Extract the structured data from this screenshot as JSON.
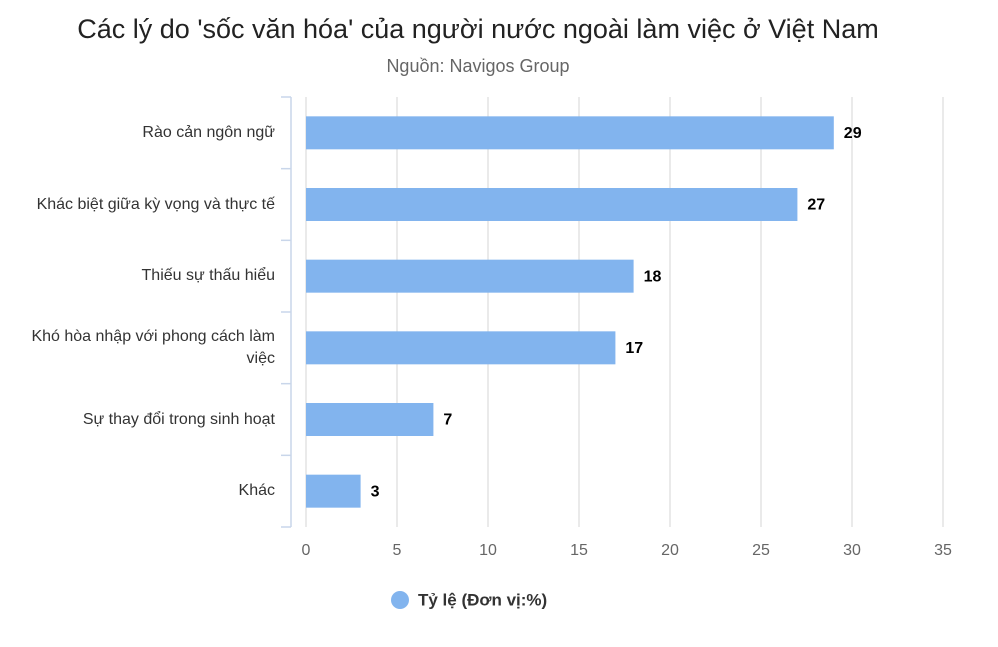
{
  "chart_data": {
    "type": "barh",
    "title": "Các lý do 'sốc văn hóa' của người nước ngoài làm việc ở Việt Nam",
    "subtitle": "Nguồn: Navigos Group",
    "categories": [
      "Rào cản ngôn ngữ",
      "Khác biệt giữa kỳ vọng và thực tế",
      "Thiếu sự thấu hiểu",
      "Khó hòa nhập với phong cách làm việc",
      "Sự thay đổi trong sinh hoạt",
      "Khác"
    ],
    "series": [
      {
        "name": "Tỷ lệ (Đơn vị:%)",
        "color": "#82b4ee",
        "values": [
          29,
          27,
          18,
          17,
          7,
          3
        ]
      }
    ],
    "xlim": [
      0,
      35
    ],
    "xticks": [
      0,
      5,
      10,
      15,
      20,
      25,
      30,
      35
    ],
    "grid": true,
    "legend": "bottom"
  }
}
